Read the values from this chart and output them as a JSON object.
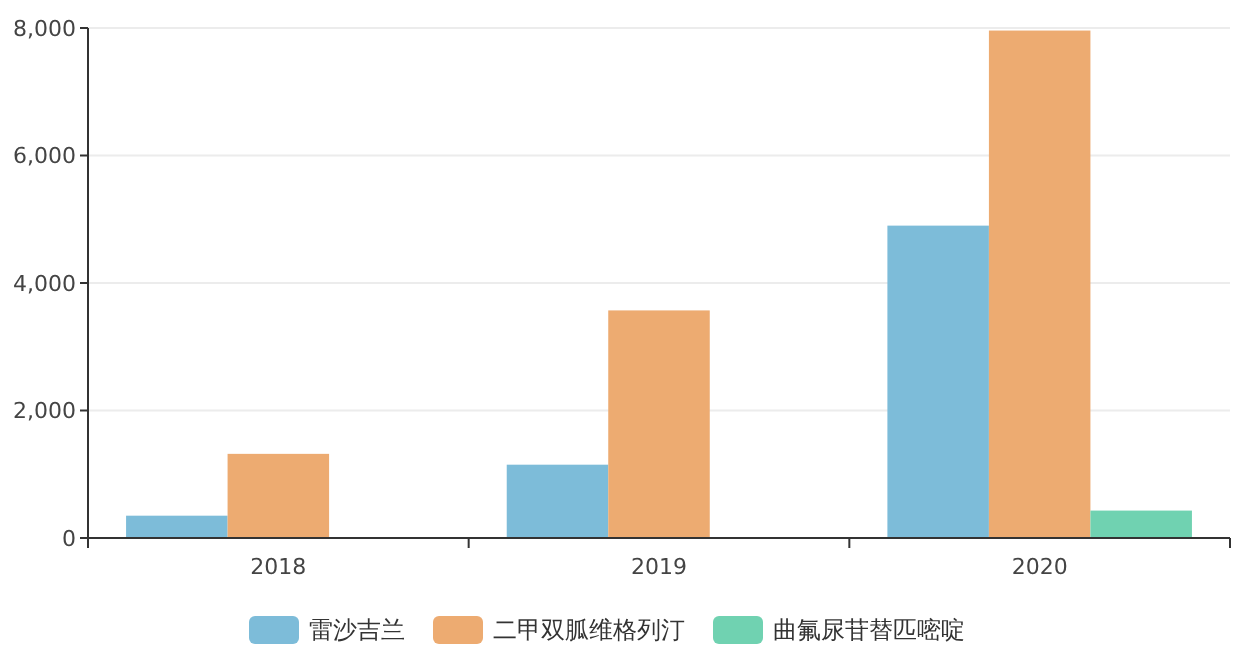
{
  "chart_data": {
    "type": "bar",
    "categories": [
      "2018",
      "2019",
      "2020"
    ],
    "series": [
      {
        "name": "雷沙吉兰",
        "color": "#7dbcd9",
        "values": [
          350,
          1150,
          4900
        ]
      },
      {
        "name": "二甲双胍维格列汀",
        "color": "#edab71",
        "values": [
          1320,
          3570,
          7960
        ]
      },
      {
        "name": "曲氟尿苷替匹嘧啶",
        "color": "#70d2b1",
        "values": [
          null,
          null,
          430
        ]
      }
    ],
    "ylim": [
      0,
      8000
    ],
    "yticks": [
      {
        "value": 0,
        "label": "0"
      },
      {
        "value": 2000,
        "label": "2,000"
      },
      {
        "value": 4000,
        "label": "4,000"
      },
      {
        "value": 6000,
        "label": "6,000"
      },
      {
        "value": 8000,
        "label": "8,000"
      }
    ],
    "grid": "y",
    "legend": "bottom"
  }
}
